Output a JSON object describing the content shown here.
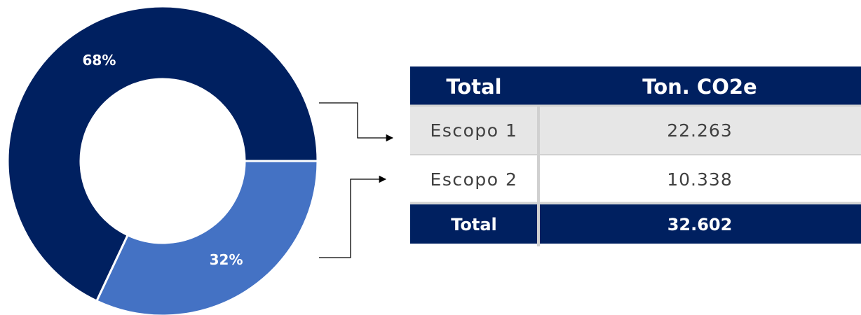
{
  "chart_data": {
    "type": "pie",
    "donut": true,
    "values": [
      68,
      32
    ],
    "value_labels": [
      "68%",
      "32%"
    ],
    "colors": [
      "#002060",
      "#4472c4"
    ]
  },
  "table": {
    "header": [
      "Total",
      "Ton. CO2e"
    ],
    "rows": [
      [
        "Escopo 1",
        "22.263"
      ],
      [
        "Escopo 2",
        "10.338"
      ]
    ],
    "footer": [
      "Total",
      "32.602"
    ]
  }
}
